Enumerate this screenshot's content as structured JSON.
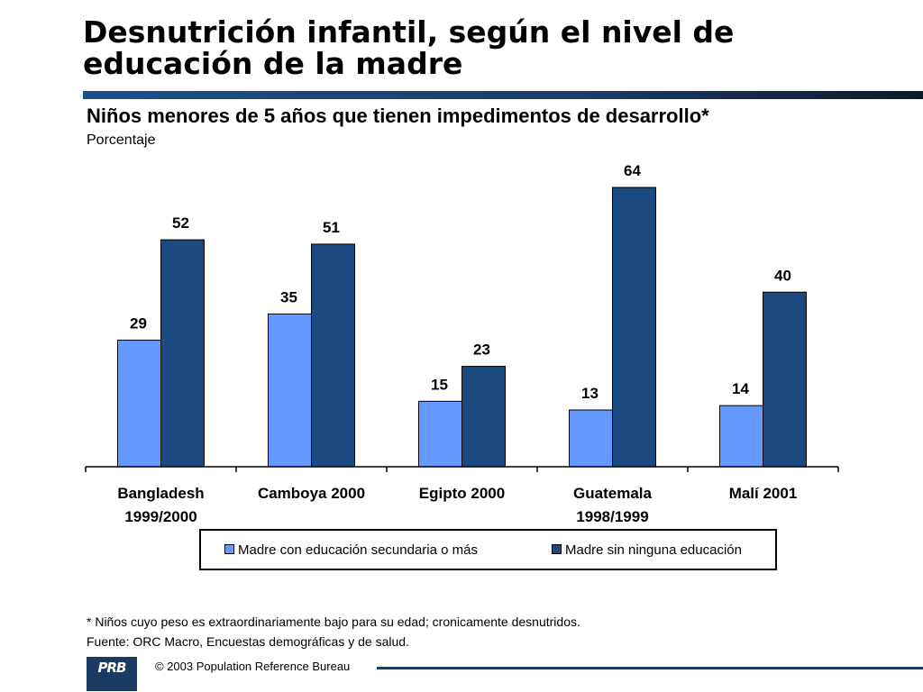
{
  "title_line1": "Desnutrición infantil, según el nivel de",
  "title_line2": "educación de la madre",
  "subtitle": "Niños menores de 5 años que tienen impedimentos de desarrollo*",
  "units": "Porcentaje",
  "footnote": "* Niños cuyo peso es extraordinariamente bajo para su edad; cronicamente desnutridos.",
  "source": "Fuente: ORC Macro, Encuestas demográficas y de salud.",
  "logo_text": "PRB",
  "copyright": "© 2003 Population Reference Bureau",
  "chart_data": {
    "type": "bar",
    "categories": [
      [
        "Bangladesh",
        "1999/2000"
      ],
      [
        "Camboya 2000"
      ],
      [
        "Egipto 2000"
      ],
      [
        "Guatemala",
        "1998/1999"
      ],
      [
        "Malí 2001"
      ]
    ],
    "series": [
      {
        "name": "Madre con educación secundaria o más",
        "color": "#6699ff",
        "values": [
          29,
          35,
          15,
          13,
          14
        ]
      },
      {
        "name": "Madre sin ninguna educación",
        "color": "#1b4a80",
        "values": [
          52,
          51,
          23,
          64,
          40
        ]
      }
    ],
    "ylim": [
      0,
      70
    ],
    "legend_position": "bottom",
    "grid": false
  }
}
